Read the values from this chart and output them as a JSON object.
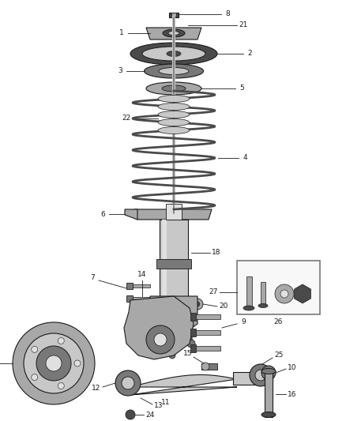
{
  "bg_color": "#ffffff",
  "fig_width": 4.38,
  "fig_height": 5.33,
  "dpi": 100,
  "gray1": "#4a4a4a",
  "gray2": "#787878",
  "gray3": "#a8a8a8",
  "gray4": "#c8c8c8",
  "gray5": "#e0e0e0",
  "black": "#1a1a1a",
  "label_fs": 6.5
}
